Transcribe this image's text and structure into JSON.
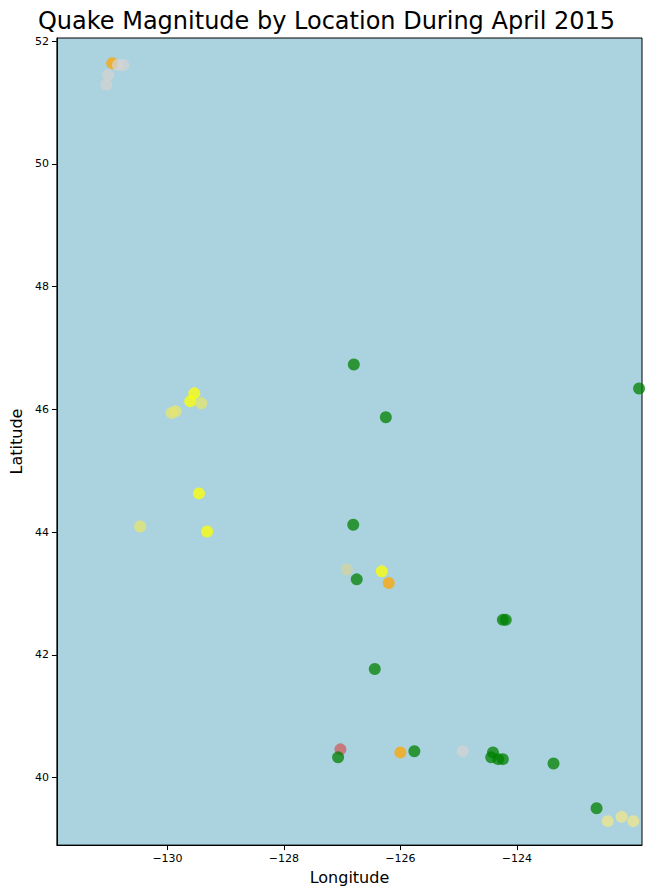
{
  "chart_data": {
    "type": "scatter",
    "title": "Quake Magnitude by Location During April 2015",
    "x_label": "Longitude",
    "y_label": "Latitude",
    "x": [
      -130.95,
      -130.85,
      -130.76,
      -131.05,
      -131.02,
      -129.54,
      -129.61,
      -129.42,
      -129.93,
      -129.86,
      -129.46,
      -129.32,
      -130.47,
      -126.8,
      -126.25,
      -126.81,
      -126.92,
      -126.75,
      -126.32,
      -126.2,
      -124.24,
      -124.19,
      -126.44,
      -127.03,
      -127.07,
      -126.0,
      -125.76,
      -124.93,
      -124.41,
      -124.44,
      -124.32,
      -124.24,
      -123.37,
      -122.63,
      -122.44,
      -122.2,
      -122.0,
      -121.9
    ],
    "values": [
      51.64,
      51.61,
      51.61,
      51.29,
      51.45,
      46.26,
      46.13,
      46.1,
      45.94,
      45.97,
      44.63,
      44.01,
      44.09,
      46.73,
      45.87,
      44.12,
      43.39,
      43.23,
      43.36,
      43.17,
      42.57,
      42.57,
      41.77,
      40.46,
      40.33,
      40.41,
      40.43,
      40.43,
      40.41,
      40.33,
      40.3,
      40.3,
      40.23,
      39.5,
      39.29,
      39.36,
      39.29,
      46.34
    ],
    "colors": [
      "#ffa500",
      "#d3d3d3",
      "#d3d3d3",
      "#d3d3d3",
      "#d3d3d3",
      "#ffff00",
      "#ffff00",
      "#e6e66e",
      "#e6e66e",
      "#e6e66e",
      "#ffff00",
      "#ffff00",
      "#e6e66e",
      "#008000",
      "#008000",
      "#008000",
      "#d3d3a0",
      "#008000",
      "#ffff00",
      "#ffa500",
      "#008000",
      "#008000",
      "#008000",
      "#cd5c5c",
      "#008000",
      "#ffa500",
      "#008000",
      "#d3d3d3",
      "#008000",
      "#008000",
      "#008000",
      "#008000",
      "#008000",
      "#008000",
      "#f0e68c",
      "#f0e68c",
      "#f0e68c",
      "#008000"
    ],
    "marker": "circle",
    "xlim": [
      -131.9,
      -121.85
    ],
    "xticks": [
      -130,
      -128,
      -126,
      -124
    ],
    "ylim": [
      38.9,
      52.05
    ],
    "yticks": [
      40,
      42,
      44,
      46,
      48,
      50,
      52
    ],
    "grid": false
  }
}
